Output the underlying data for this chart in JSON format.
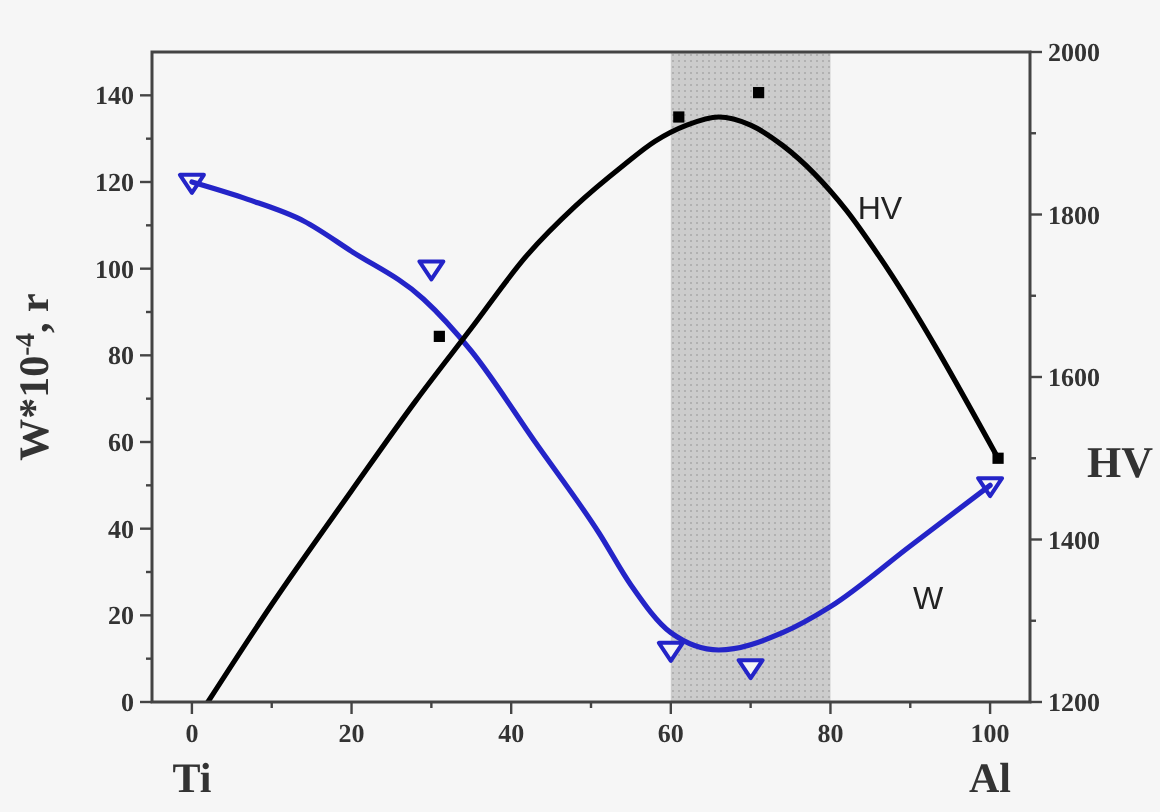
{
  "chart_data": {
    "type": "scatter",
    "ylabel": "W*10$^{-4}$, r",
    "y2label": "HV",
    "xlim": [
      -5,
      105
    ],
    "xticks": [
      0,
      {
        "value": 10,
        "label": null
      },
      20,
      {
        "value": 30,
        "label": null
      },
      40,
      {
        "value": 50,
        "label": null
      },
      60,
      {
        "value": 70,
        "label": null
      },
      80,
      {
        "value": 90,
        "label": null
      },
      100
    ],
    "ylim": [
      0,
      150
    ],
    "yticks": [
      0,
      {
        "value": 10,
        "label": null
      },
      20,
      {
        "value": 30,
        "label": null
      },
      40,
      {
        "value": 50,
        "label": null
      },
      60,
      {
        "value": 70,
        "label": null
      },
      80,
      {
        "value": 90,
        "label": null
      },
      100,
      {
        "value": 110,
        "label": null
      },
      120,
      {
        "value": 130,
        "label": null
      },
      140
    ],
    "y2lim": [
      1200,
      2000
    ],
    "y2ticks": [
      1200,
      {
        "value": 1300,
        "label": null
      },
      1400,
      {
        "value": 1500,
        "label": null
      },
      1600,
      {
        "value": 1700,
        "label": null
      },
      1800,
      {
        "value": 1900,
        "label": null
      },
      2000
    ],
    "bands": [
      {
        "axis": "x",
        "from": 60,
        "to": 80,
        "color": "#cccccc"
      }
    ],
    "series": [
      {
        "color": "#2424c8",
        "marker": "triangle",
        "x": [
          0,
          30,
          60,
          70,
          100
        ],
        "values": [
          120,
          100,
          12,
          8,
          50
        ]
      },
      {
        "name": "W",
        "type": "line",
        "color": "#2424c8",
        "marker": "none",
        "x": [
          0,
          7,
          14,
          20,
          29,
          35,
          43,
          51,
          55,
          60,
          66,
          74,
          80,
          90,
          100
        ],
        "values": [
          120,
          116,
          111,
          104,
          93,
          81,
          60,
          39,
          27,
          16,
          12,
          16,
          22,
          36,
          50
        ]
      },
      {
        "axis": "y2",
        "color": "#000000",
        "marker": "square",
        "x": [
          31,
          61,
          71,
          101
        ],
        "values": [
          1650,
          1920,
          1950,
          1500
        ]
      },
      {
        "name": "HV",
        "type": "line",
        "axis": "y2",
        "color": "#000000",
        "marker": "none",
        "x": [
          2,
          10,
          20,
          28,
          35,
          42,
          48,
          54,
          58,
          62,
          66,
          70,
          74,
          78,
          82,
          86,
          101
        ],
        "values": [
          1200,
          1320,
          1460,
          1570,
          1660,
          1750,
          1810,
          1860,
          1890,
          1910,
          1920,
          1910,
          1885,
          1850,
          1805,
          1750,
          1500
        ]
      }
    ],
    "annotations": [
      "Ti",
      "Al"
    ]
  }
}
